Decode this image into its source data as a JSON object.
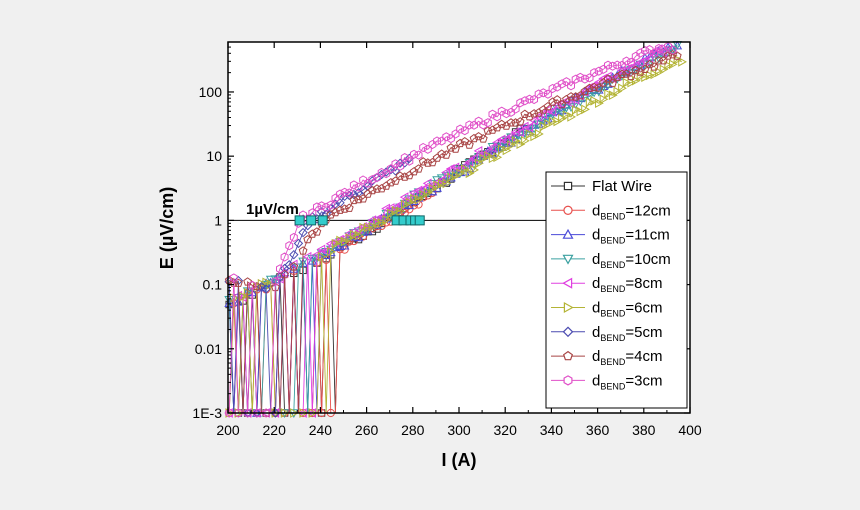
{
  "chart_data": {
    "type": "line",
    "title": "",
    "xlabel": "I (A)",
    "ylabel": "E (µV/cm)",
    "xlim": [
      200,
      400
    ],
    "ylim": [
      0.001,
      600
    ],
    "yscale": "log",
    "x_ticks": [
      "200",
      "220",
      "240",
      "260",
      "280",
      "300",
      "320",
      "340",
      "360",
      "380",
      "400"
    ],
    "y_ticks": [
      "1E-3",
      "0.01",
      "0.1",
      "1",
      "10",
      "100"
    ],
    "criterion": {
      "value": 1,
      "label": "1µV/cm"
    },
    "critical_currents": [
      231,
      236,
      241,
      273,
      276,
      279,
      281,
      283
    ],
    "legend_position": "right",
    "series": [
      {
        "name": "Flat Wire",
        "base": "Flat Wire",
        "sub": "",
        "suffix": "",
        "color": "#333333",
        "marker": "square",
        "branch": "upper",
        "ic": 281,
        "n": 20,
        "end": 330,
        "noise": 270
      },
      {
        "name": "dBEND=12cm",
        "base": "d",
        "sub": "BEND",
        "suffix": "=12cm",
        "color": "#e8504d",
        "marker": "circle",
        "branch": "upper",
        "ic": 283,
        "n": 20,
        "end": 290,
        "noise": 265
      },
      {
        "name": "dBEND=11cm",
        "base": "d",
        "sub": "BEND",
        "suffix": "=11cm",
        "color": "#4a4ad8",
        "marker": "triangle-up",
        "branch": "upper",
        "ic": 279,
        "n": 18,
        "end": 395,
        "noise": 240
      },
      {
        "name": "dBEND=10cm",
        "base": "d",
        "sub": "BEND",
        "suffix": "=10cm",
        "color": "#3aa0a0",
        "marker": "triangle-down",
        "branch": "upper",
        "ic": 276,
        "n": 17,
        "end": 395,
        "noise": 235
      },
      {
        "name": "dBEND=8cm",
        "base": "d",
        "sub": "BEND",
        "suffix": "=8cm",
        "color": "#e040e0",
        "marker": "triangle-left",
        "branch": "upper",
        "ic": 273,
        "n": 17,
        "end": 390,
        "noise": 238
      },
      {
        "name": "dBEND=6cm",
        "base": "d",
        "sub": "BEND",
        "suffix": "=6cm",
        "color": "#b4b436",
        "marker": "triangle-right",
        "branch": "upper",
        "ic": 280,
        "n": 16,
        "end": 397,
        "noise": 245
      },
      {
        "name": "dBEND=5cm",
        "base": "d",
        "sub": "BEND",
        "suffix": "=5cm",
        "color": "#4a4ab0",
        "marker": "diamond",
        "branch": "lower",
        "ic": 236,
        "n": 13,
        "end": 280,
        "noise": 232
      },
      {
        "name": "dBEND=4cm",
        "base": "d",
        "sub": "BEND",
        "suffix": "=4cm",
        "color": "#a84444",
        "marker": "pentagon",
        "branch": "lower",
        "ic": 241,
        "n": 12,
        "end": 395,
        "noise": 232
      },
      {
        "name": "dBEND=3cm",
        "base": "d",
        "sub": "BEND",
        "suffix": "=3cm",
        "color": "#e050c8",
        "marker": "hexagon",
        "branch": "lower",
        "ic": 231,
        "n": 12,
        "end": 393,
        "noise": 230
      }
    ]
  }
}
